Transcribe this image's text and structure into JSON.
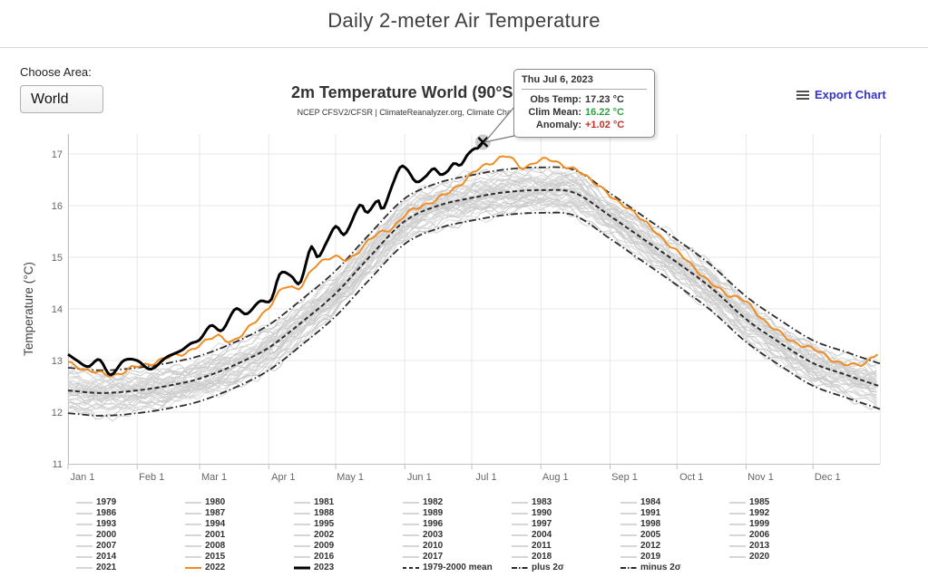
{
  "page": {
    "title": "Daily 2-meter Air Temperature"
  },
  "controls": {
    "choose_area_label": "Choose Area:",
    "area_value": "World",
    "export_label": "Export Chart"
  },
  "tooltip": {
    "date": "Thu Jul 6, 2023",
    "rows": [
      {
        "label": "Obs Temp:",
        "value": "17.23 °C",
        "color": "#333333"
      },
      {
        "label": "Clim Mean:",
        "value": "16.22 °C",
        "color": "#2f9e44"
      },
      {
        "label": "Anomaly:",
        "value": "+1.02 °C",
        "color": "#c03028"
      }
    ]
  },
  "colors": {
    "line_2022": "#ef8c22",
    "line_2023": "#000000",
    "line_year": "#d2d2d2",
    "line_stat": "#2b2b2b",
    "grid": "#e7e7e7",
    "axis": "#c0c0c0",
    "tick_text": "#666666",
    "obs_value": "#333333",
    "clim_value": "#2f9e44",
    "anomaly_value": "#c03028",
    "export_blue": "#3434cd"
  },
  "chart_data": {
    "type": "line",
    "title": "2m Temperature World (90°S–90°N, 0–360°E)",
    "subtitle": "NCEP CFSV2/CFSR | ClimateReanalyzer.org, Climate Change Institute, University of Maine",
    "y_axis_title": "Temperature (°C)",
    "ylim": [
      11,
      17.4
    ],
    "y_ticks": [
      11,
      12,
      13,
      14,
      15,
      16,
      17
    ],
    "x_tick_days": [
      0,
      31,
      59,
      90,
      120,
      151,
      181,
      212,
      243,
      273,
      304,
      334
    ],
    "x_tick_labels": [
      "Jan 1",
      "Feb 1",
      "Mar 1",
      "Apr 1",
      "May 1",
      "Jun 1",
      "Jul 1",
      "Aug 1",
      "Sep 1",
      "Oct 1",
      "Nov 1",
      "Dec 1"
    ],
    "grid": true,
    "legend_position": "bottom",
    "ensemble_years": [
      "1979",
      "1980",
      "1981",
      "1982",
      "1983",
      "1984",
      "1985",
      "1986",
      "1987",
      "1988",
      "1989",
      "1990",
      "1991",
      "1992",
      "1993",
      "1994",
      "1995",
      "1996",
      "1997",
      "1998",
      "1999",
      "2000",
      "2001",
      "2002",
      "2003",
      "2004",
      "2005",
      "2006",
      "2007",
      "2008",
      "2009",
      "2010",
      "2011",
      "2012",
      "2013",
      "2014",
      "2015",
      "2016",
      "2017",
      "2018",
      "2019",
      "2020",
      "2021"
    ],
    "series_mean": {
      "name": "1979-2000 mean",
      "days": [
        0,
        15,
        31,
        46,
        59,
        74,
        90,
        105,
        120,
        135,
        151,
        166,
        181,
        196,
        212,
        227,
        243,
        258,
        273,
        288,
        304,
        319,
        334,
        349,
        364
      ],
      "values": [
        12.42,
        12.37,
        12.42,
        12.52,
        12.65,
        12.9,
        13.25,
        13.75,
        14.3,
        15.0,
        15.7,
        16.0,
        16.15,
        16.26,
        16.3,
        16.25,
        15.8,
        15.35,
        14.9,
        14.42,
        13.8,
        13.35,
        12.95,
        12.72,
        12.5
      ]
    },
    "sigma_offset": 0.44,
    "series_2022": {
      "name": "2022",
      "days": [
        0,
        10,
        19,
        31,
        45,
        59,
        67,
        74,
        83,
        90,
        97,
        104,
        111,
        118,
        125,
        132,
        139,
        146,
        151,
        158,
        165,
        172,
        178,
        184,
        190,
        197,
        203,
        210,
        217,
        224,
        231,
        238,
        245,
        252,
        259,
        266,
        273,
        281,
        288,
        295,
        302,
        309,
        316,
        323,
        330,
        337,
        344,
        351,
        357,
        361,
        364
      ],
      "values": [
        12.95,
        12.8,
        12.72,
        12.88,
        13.05,
        13.28,
        13.5,
        13.35,
        13.75,
        14.0,
        14.45,
        14.4,
        14.85,
        15.0,
        14.95,
        15.2,
        15.45,
        15.6,
        15.8,
        16.0,
        16.1,
        16.3,
        16.5,
        16.7,
        16.85,
        16.95,
        16.75,
        16.85,
        16.88,
        16.75,
        16.6,
        16.4,
        16.1,
        15.95,
        15.65,
        15.4,
        15.1,
        14.8,
        14.5,
        14.3,
        14.2,
        13.9,
        13.65,
        13.4,
        13.3,
        13.15,
        13.0,
        12.9,
        12.95,
        13.1,
        13.15
      ]
    },
    "series_2023": {
      "name": "2023",
      "days": [
        0,
        4,
        9,
        14,
        19,
        25,
        31,
        37,
        44,
        51,
        55,
        59,
        64,
        69,
        75,
        80,
        86,
        91,
        95,
        100,
        104,
        109,
        112,
        116,
        120,
        124,
        131,
        134,
        139,
        141,
        145,
        149,
        152,
        156,
        160,
        164,
        167,
        170,
        173,
        176,
        179,
        182,
        184,
        186
      ],
      "values": [
        13.12,
        13.0,
        12.88,
        13.02,
        12.72,
        13.0,
        13.0,
        12.83,
        13.06,
        13.2,
        13.33,
        13.4,
        13.68,
        13.58,
        14.0,
        13.9,
        14.15,
        14.17,
        14.68,
        14.64,
        14.5,
        15.2,
        15.0,
        15.3,
        15.6,
        15.44,
        16.02,
        15.86,
        16.1,
        15.92,
        16.35,
        16.75,
        16.7,
        16.46,
        16.55,
        16.72,
        16.6,
        16.66,
        16.82,
        16.78,
        16.98,
        17.1,
        17.12,
        17.23
      ]
    },
    "marker": {
      "day": 186,
      "value": 17.23,
      "obs": "17.23 °C",
      "clim_mean": "16.22 °C",
      "anomaly": "+1.02 °C"
    }
  },
  "legend": {
    "items": [
      {
        "label": "1979",
        "style": "year"
      },
      {
        "label": "1980",
        "style": "year"
      },
      {
        "label": "1981",
        "style": "year"
      },
      {
        "label": "1982",
        "style": "year"
      },
      {
        "label": "1983",
        "style": "year"
      },
      {
        "label": "1984",
        "style": "year"
      },
      {
        "label": "1985",
        "style": "year"
      },
      {
        "label": "1986",
        "style": "year"
      },
      {
        "label": "1987",
        "style": "year"
      },
      {
        "label": "1988",
        "style": "year"
      },
      {
        "label": "1989",
        "style": "year"
      },
      {
        "label": "1990",
        "style": "year"
      },
      {
        "label": "1991",
        "style": "year"
      },
      {
        "label": "1992",
        "style": "year"
      },
      {
        "label": "1993",
        "style": "year"
      },
      {
        "label": "1994",
        "style": "year"
      },
      {
        "label": "1995",
        "style": "year"
      },
      {
        "label": "1996",
        "style": "year"
      },
      {
        "label": "1997",
        "style": "year"
      },
      {
        "label": "1998",
        "style": "year"
      },
      {
        "label": "1999",
        "style": "year"
      },
      {
        "label": "2000",
        "style": "year"
      },
      {
        "label": "2001",
        "style": "year"
      },
      {
        "label": "2002",
        "style": "year"
      },
      {
        "label": "2003",
        "style": "year"
      },
      {
        "label": "2004",
        "style": "year"
      },
      {
        "label": "2005",
        "style": "year"
      },
      {
        "label": "2006",
        "style": "year"
      },
      {
        "label": "2007",
        "style": "year"
      },
      {
        "label": "2008",
        "style": "year"
      },
      {
        "label": "2009",
        "style": "year"
      },
      {
        "label": "2010",
        "style": "year"
      },
      {
        "label": "2011",
        "style": "year"
      },
      {
        "label": "2012",
        "style": "year"
      },
      {
        "label": "2013",
        "style": "year"
      },
      {
        "label": "2014",
        "style": "year"
      },
      {
        "label": "2015",
        "style": "year"
      },
      {
        "label": "2016",
        "style": "year"
      },
      {
        "label": "2017",
        "style": "year"
      },
      {
        "label": "2018",
        "style": "year"
      },
      {
        "label": "2019",
        "style": "year"
      },
      {
        "label": "2020",
        "style": "year"
      },
      {
        "label": "2021",
        "style": "year"
      },
      {
        "label": "2022",
        "style": "y2022"
      },
      {
        "label": "2023",
        "style": "y2023"
      },
      {
        "label": "1979-2000 mean",
        "style": "mean"
      },
      {
        "label": "plus 2σ",
        "style": "plus2s"
      },
      {
        "label": "minus 2σ",
        "style": "minus2s"
      }
    ]
  }
}
